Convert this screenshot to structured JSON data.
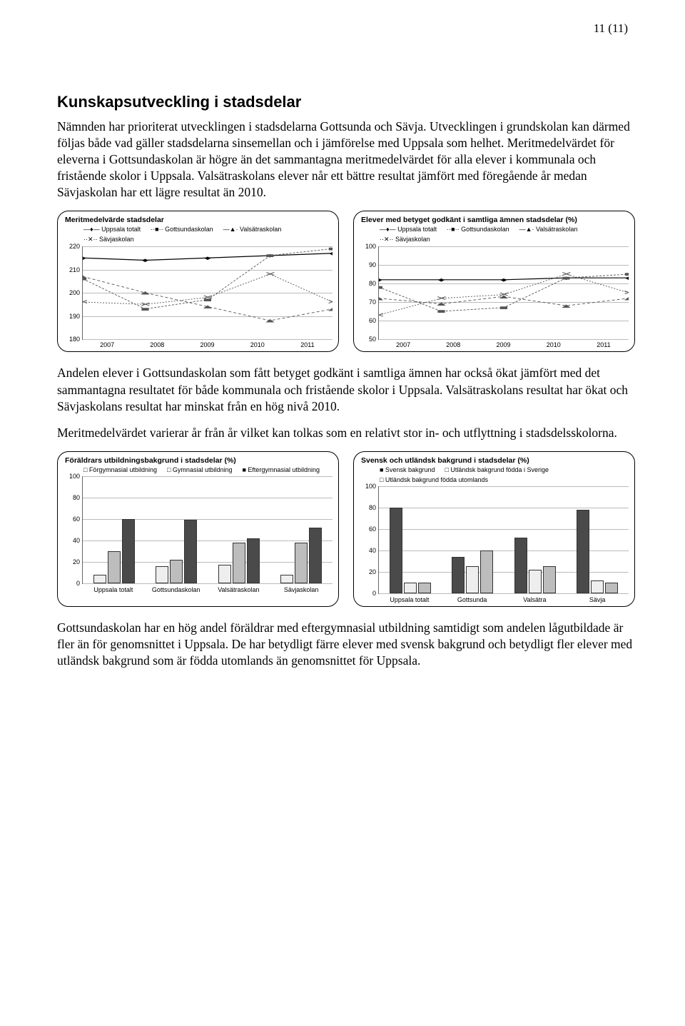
{
  "page_number": "11 (11)",
  "heading": "Kunskapsutveckling i stadsdelar",
  "para1": "Nämnden har prioriterat utvecklingen i stadsdelarna Gottsunda och Sävja. Utvecklingen i grundskolan kan därmed följas både vad gäller stadsdelarna sinsemellan och i jämförelse med Uppsala som helhet. Meritmedelvärdet för eleverna i Gottsundaskolan är högre än det sammantagna meritmedelvärdet för alla elever i kommunala och fristående skolor i Uppsala. Valsätraskolans elever når ett bättre resultat jämfört med föregående år medan Sävjaskolan har ett lägre resultat än 2010.",
  "para2": "Andelen elever i Gottsundaskolan som fått betyget godkänt i samtliga ämnen har också ökat jämfört med det sammantagna resultatet för både kommunala och fristående skolor i Uppsala. Valsätraskolans resultat har ökat och Sävjaskolans resultat har minskat från en hög nivå 2010.",
  "para3": "Meritmedelvärdet varierar år från år vilket kan tolkas som en relativt stor in- och utflyttning i stadsdelsskolorna.",
  "para4": "Gottsundaskolan har en hög andel föräldrar med eftergymnasial utbildning samtidigt som andelen lågutbildade är fler än för genomsnittet i Uppsala. De har betydligt färre elever med svensk bakgrund och betydligt fler elever med utländsk bakgrund som är födda utomlands än genomsnittet för Uppsala.",
  "chart_a": {
    "title": "Meritmedelvärde stadsdelar",
    "legend": [
      "—♦— Uppsala totalt",
      "··■·· Gottsundaskolan",
      "—▲· Valsätraskolan",
      "··✕·· Sävjaskolan"
    ],
    "years": [
      "2007",
      "2008",
      "2009",
      "2010",
      "2011"
    ],
    "ymin": 180,
    "ymax": 220,
    "ystep": 10,
    "series": {
      "uppsala": [
        215,
        214,
        215,
        216,
        217
      ],
      "gottsunda": [
        206,
        193,
        197,
        216,
        219
      ],
      "valsatra": [
        207,
        200,
        194,
        188,
        193
      ],
      "savja": [
        196,
        195,
        198,
        208,
        196
      ]
    },
    "colors": {
      "uppsala": "#000",
      "gottsunda": "#555",
      "valsatra": "#555",
      "savja": "#555"
    }
  },
  "chart_b": {
    "title": "Elever med betyget godkänt i samtliga ämnen stadsdelar (%)",
    "legend": [
      "—♦— Uppsala totalt",
      "··■·· Gottsundaskolan",
      "—▲· Valsätraskolan",
      "··✕·· Sävjaskolan"
    ],
    "years": [
      "2007",
      "2008",
      "2009",
      "2010",
      "2011"
    ],
    "ymin": 50,
    "ymax": 100,
    "ystep": 10,
    "series": {
      "uppsala": [
        82,
        82,
        82,
        83,
        83
      ],
      "gottsunda": [
        78,
        65,
        67,
        83,
        85
      ],
      "valsatra": [
        72,
        69,
        73,
        68,
        72
      ],
      "savja": [
        63,
        72,
        74,
        85,
        75
      ]
    },
    "colors": {
      "uppsala": "#000",
      "gottsunda": "#555",
      "valsatra": "#555",
      "savja": "#555"
    }
  },
  "chart_c": {
    "title": "Föräldrars utbildningsbakgrund i stadsdelar (%)",
    "legend": [
      "□ Förgymnasial utbildning",
      "□ Gymnasial utbildning",
      "■ Eftergymnasial utbildning"
    ],
    "ymin": 0,
    "ymax": 100,
    "ystep": 20,
    "categories": [
      "Uppsala totalt",
      "Gottsundaskolan",
      "Valsätraskolan",
      "Sävjaskolan"
    ],
    "series": {
      "forgymn": [
        8,
        16,
        17,
        8
      ],
      "gymn": [
        30,
        22,
        38,
        38
      ],
      "eftergymn": [
        60,
        59,
        42,
        52
      ]
    },
    "bar_colors": {
      "forgymn": "#eeeeee",
      "gymn": "#bdbdbd",
      "eftergymn": "#4a4a4a"
    }
  },
  "chart_d": {
    "title": "Svensk och utländsk bakgrund i stadsdelar (%)",
    "legend": [
      "■ Svensk bakgrund",
      "□ Utländsk bakgrund födda i Sverige",
      "□ Utländsk bakgrund födda utomlands"
    ],
    "ymin": 0,
    "ymax": 100,
    "ystep": 20,
    "categories": [
      "Uppsala totalt",
      "Gottsunda",
      "Valsätra",
      "Sävja"
    ],
    "series": {
      "svensk": [
        80,
        34,
        52,
        78
      ],
      "utl_sv": [
        10,
        25,
        22,
        12
      ],
      "utl_utom": [
        10,
        40,
        25,
        10
      ]
    },
    "bar_colors": {
      "svensk": "#4a4a4a",
      "utl_sv": "#eeeeee",
      "utl_utom": "#bdbdbd"
    }
  }
}
